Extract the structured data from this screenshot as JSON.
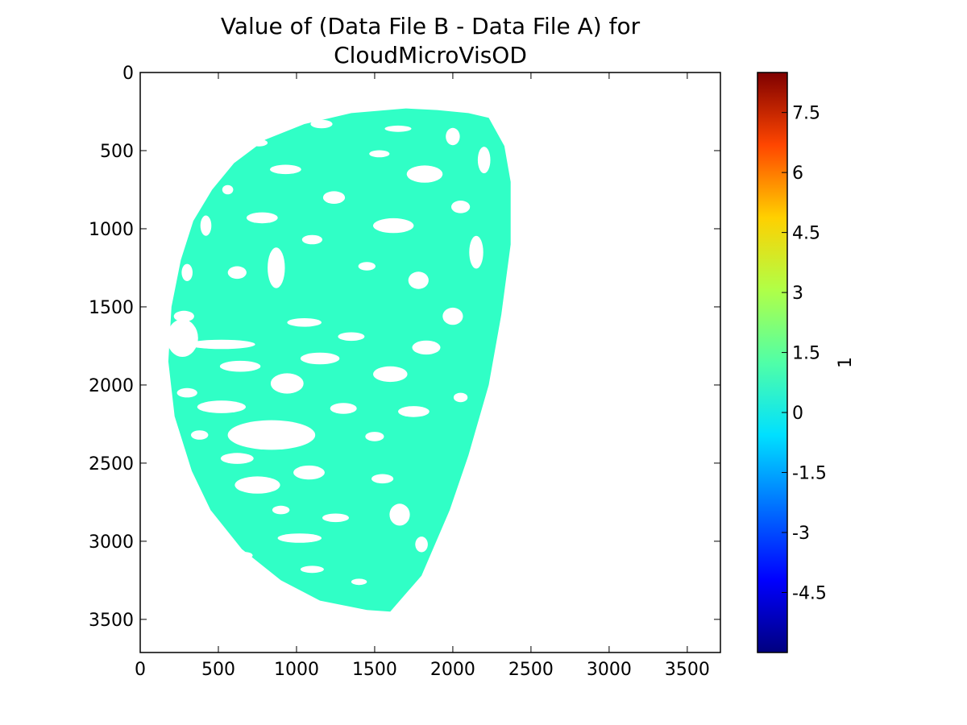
{
  "chart_data": {
    "type": "heatmap",
    "title_line1": "Value of (Data File B - Data File A) for",
    "title_line2": "CloudMicroVisOD",
    "xlim": [
      0,
      3712
    ],
    "ylim": [
      3712,
      0
    ],
    "y_inverted": true,
    "xticks": [
      0,
      500,
      1000,
      1500,
      2000,
      2500,
      3000,
      3500
    ],
    "yticks": [
      0,
      500,
      1000,
      1500,
      2000,
      2500,
      3000,
      3500
    ],
    "xtick_labels": [
      "0",
      "500",
      "1000",
      "1500",
      "2000",
      "2500",
      "3000",
      "3500"
    ],
    "ytick_labels": [
      "0",
      "500",
      "1000",
      "1500",
      "2000",
      "2500",
      "3000",
      "3500"
    ],
    "data_value": 0,
    "data_color": "#30ffc6",
    "colormap": "jet",
    "colorbar": {
      "label": "1",
      "range": [
        -6,
        8.5
      ],
      "ticks": [
        -4.5,
        -3,
        -1.5,
        0,
        1.5,
        3,
        4.5,
        6,
        7.5
      ],
      "tick_labels": [
        "-4.5",
        "-3",
        "-1.5",
        "0",
        "1.5",
        "3",
        "4.5",
        "6",
        "7.5"
      ]
    },
    "disk_outline": [
      [
        1700,
        230
      ],
      [
        1900,
        240
      ],
      [
        2100,
        260
      ],
      [
        2230,
        290
      ],
      [
        2330,
        470
      ],
      [
        2370,
        700
      ],
      [
        2370,
        1100
      ],
      [
        2310,
        1550
      ],
      [
        2230,
        2000
      ],
      [
        2100,
        2450
      ],
      [
        1980,
        2800
      ],
      [
        1800,
        3220
      ],
      [
        1600,
        3450
      ],
      [
        1450,
        3440
      ],
      [
        1150,
        3380
      ],
      [
        900,
        3250
      ],
      [
        650,
        3050
      ],
      [
        450,
        2800
      ],
      [
        330,
        2550
      ],
      [
        220,
        2200
      ],
      [
        180,
        1850
      ],
      [
        200,
        1500
      ],
      [
        260,
        1200
      ],
      [
        340,
        950
      ],
      [
        460,
        750
      ],
      [
        600,
        580
      ],
      [
        800,
        430
      ],
      [
        1050,
        330
      ],
      [
        1350,
        260
      ]
    ],
    "clear_regions": [
      [
        1160,
        330,
        140,
        55
      ],
      [
        1650,
        360,
        170,
        40
      ],
      [
        2000,
        410,
        90,
        110
      ],
      [
        760,
        450,
        110,
        45
      ],
      [
        1530,
        520,
        130,
        45
      ],
      [
        2200,
        560,
        80,
        170
      ],
      [
        930,
        620,
        200,
        60
      ],
      [
        1820,
        650,
        230,
        110
      ],
      [
        560,
        750,
        70,
        60
      ],
      [
        1240,
        800,
        140,
        80
      ],
      [
        2050,
        860,
        120,
        80
      ],
      [
        420,
        980,
        70,
        130
      ],
      [
        780,
        930,
        200,
        70
      ],
      [
        1620,
        980,
        260,
        95
      ],
      [
        1100,
        1070,
        130,
        60
      ],
      [
        2150,
        1150,
        90,
        210
      ],
      [
        870,
        1250,
        110,
        260
      ],
      [
        300,
        1280,
        70,
        110
      ],
      [
        620,
        1280,
        120,
        80
      ],
      [
        1450,
        1240,
        110,
        55
      ],
      [
        1780,
        1330,
        130,
        110
      ],
      [
        280,
        1560,
        130,
        70
      ],
      [
        1050,
        1600,
        220,
        55
      ],
      [
        2000,
        1560,
        130,
        110
      ],
      [
        270,
        1700,
        200,
        240
      ],
      [
        520,
        1740,
        430,
        60
      ],
      [
        1350,
        1690,
        170,
        55
      ],
      [
        1830,
        1760,
        180,
        90
      ],
      [
        640,
        1880,
        260,
        70
      ],
      [
        1150,
        1830,
        250,
        75
      ],
      [
        1600,
        1930,
        220,
        100
      ],
      [
        300,
        2050,
        130,
        60
      ],
      [
        940,
        1990,
        210,
        130
      ],
      [
        2050,
        2080,
        90,
        60
      ],
      [
        520,
        2140,
        310,
        80
      ],
      [
        1300,
        2150,
        170,
        70
      ],
      [
        1750,
        2170,
        200,
        70
      ],
      [
        380,
        2320,
        110,
        60
      ],
      [
        840,
        2320,
        560,
        190
      ],
      [
        1500,
        2330,
        120,
        60
      ],
      [
        620,
        2470,
        210,
        70
      ],
      [
        1080,
        2560,
        200,
        90
      ],
      [
        1550,
        2600,
        140,
        60
      ],
      [
        750,
        2640,
        290,
        110
      ],
      [
        1660,
        2830,
        130,
        140
      ],
      [
        900,
        2800,
        110,
        55
      ],
      [
        1250,
        2850,
        170,
        55
      ],
      [
        1020,
        2980,
        280,
        60
      ],
      [
        1800,
        3020,
        80,
        100
      ],
      [
        660,
        3090,
        120,
        45
      ],
      [
        1100,
        3180,
        150,
        45
      ],
      [
        1400,
        3260,
        100,
        40
      ]
    ]
  }
}
